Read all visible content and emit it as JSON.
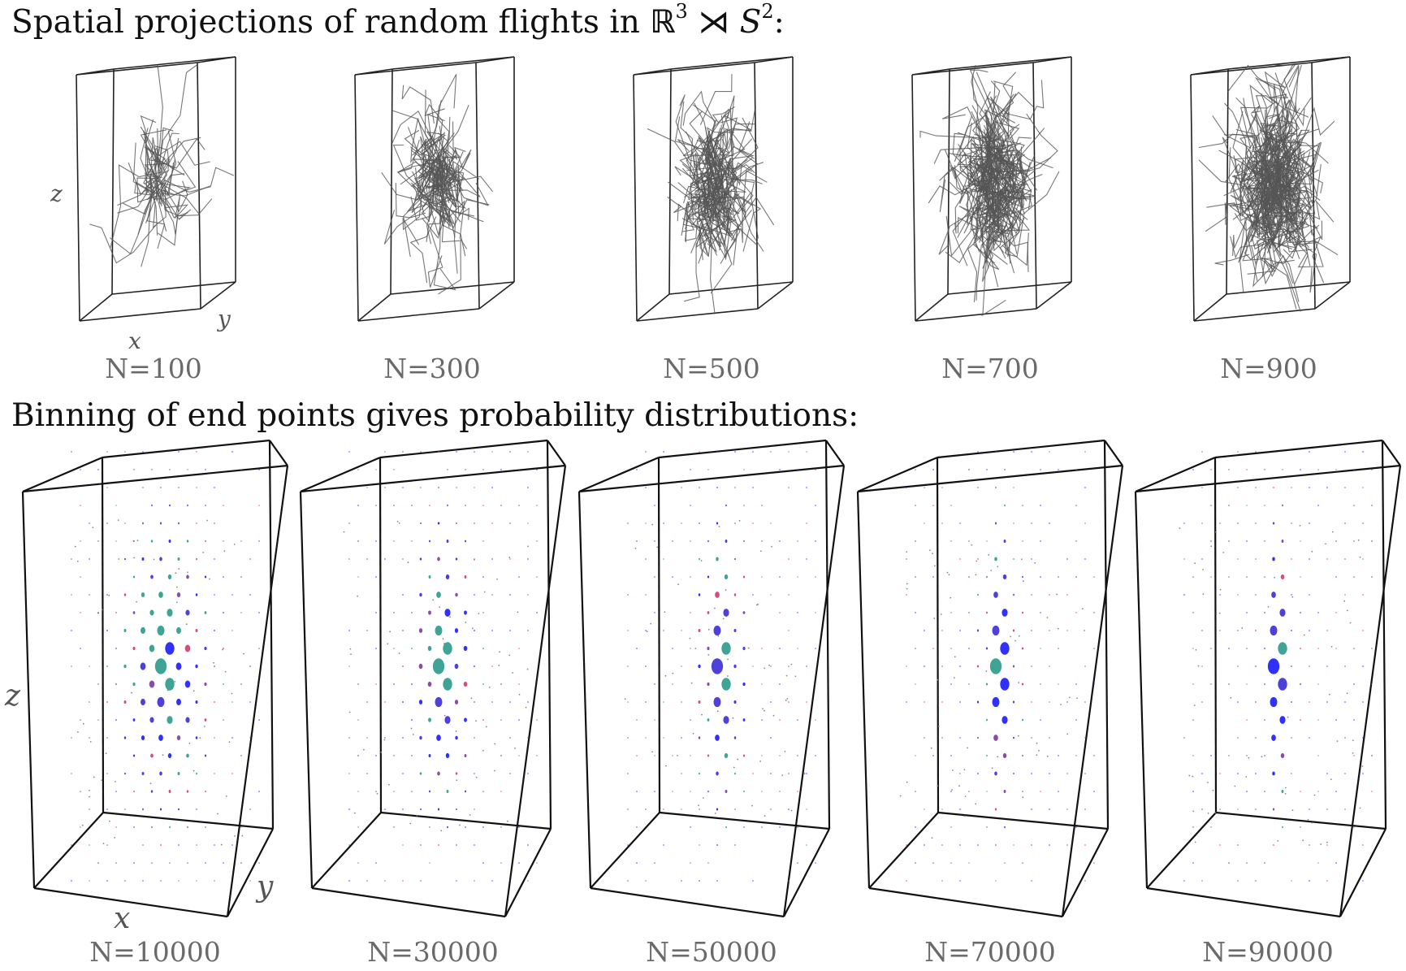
{
  "title_top": {
    "prefix": "Spatial projections of random flights in ",
    "group_symbol": "ℝ",
    "group_exp": "3",
    "product_symbol": "⋊",
    "sphere_symbol": "S",
    "sphere_exp": "2",
    "suffix": ":"
  },
  "title_bottom": "Binning of end points gives probability distributions:",
  "top_row": {
    "panels": [
      {
        "label": "N=100",
        "n": 100
      },
      {
        "label": "N=300",
        "n": 300
      },
      {
        "label": "N=500",
        "n": 500
      },
      {
        "label": "N=700",
        "n": 700
      },
      {
        "label": "N=900",
        "n": 900
      }
    ],
    "axis_labels": {
      "x": "x",
      "y": "y",
      "z": "z"
    },
    "line_color": "#555555"
  },
  "bottom_row": {
    "panels": [
      {
        "label": "N=10000",
        "n": 10000
      },
      {
        "label": "N=30000",
        "n": 30000
      },
      {
        "label": "N=50000",
        "n": 50000
      },
      {
        "label": "N=70000",
        "n": 70000
      },
      {
        "label": "N=90000",
        "n": 90000
      }
    ],
    "axis_labels": {
      "x": "x",
      "y": "y",
      "z": "z"
    },
    "blob_colors": [
      "#1a1aff",
      "#3b2bd6",
      "#2a9a8a",
      "#7a3aa0",
      "#d03a6a"
    ]
  }
}
